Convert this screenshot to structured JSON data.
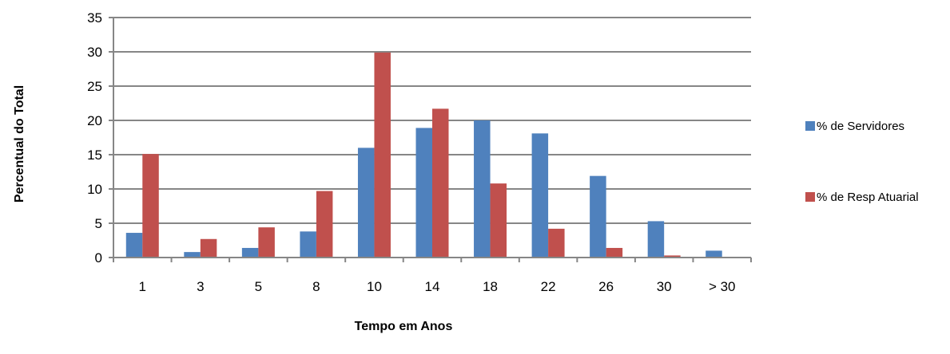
{
  "chart_data": {
    "type": "bar",
    "categories": [
      "1",
      "3",
      "5",
      "8",
      "10",
      "14",
      "18",
      "22",
      "26",
      "30",
      "> 30"
    ],
    "series": [
      {
        "name": "% de Servidores",
        "values": [
          3.6,
          0.8,
          1.4,
          3.8,
          16.0,
          18.9,
          20.0,
          18.1,
          11.9,
          5.3,
          1.0
        ],
        "color": "#4F81BD"
      },
      {
        "name": "% de Resp Atuarial",
        "values": [
          15.1,
          2.7,
          4.4,
          9.7,
          29.9,
          21.7,
          10.8,
          4.2,
          1.4,
          0.3,
          0.0
        ],
        "color": "#C0504D"
      }
    ],
    "xlabel": "Tempo em Anos",
    "ylabel": "Percentual do Total",
    "ylim": [
      0,
      35
    ],
    "yticks": [
      0,
      5,
      10,
      15,
      20,
      25,
      30,
      35
    ],
    "grid": true,
    "gridline_color": "#868686",
    "legend_position": "right"
  }
}
